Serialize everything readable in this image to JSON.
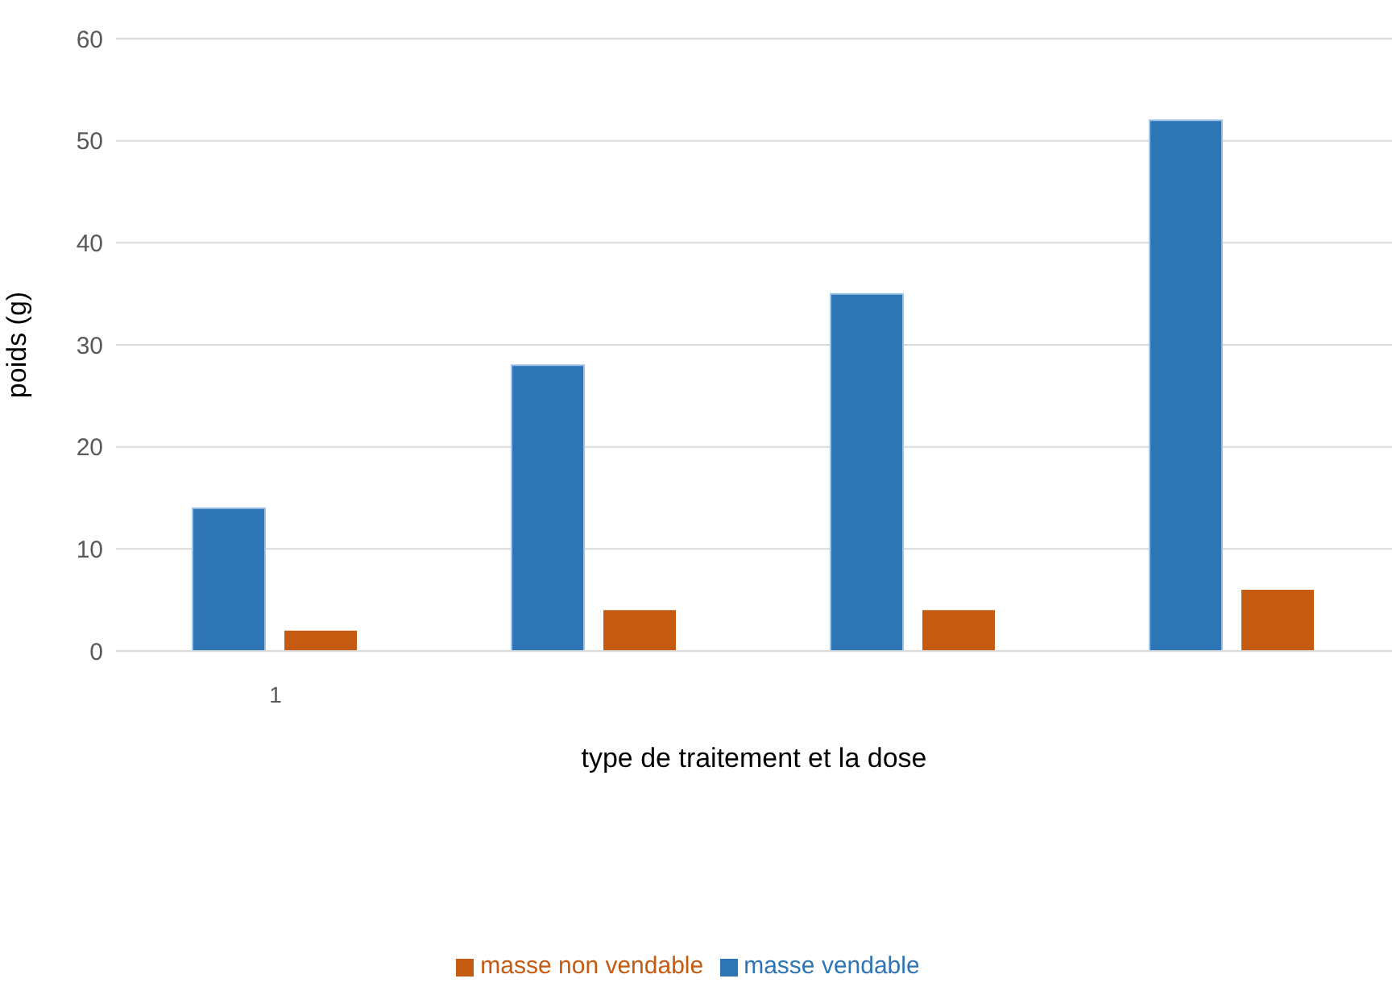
{
  "chart_data": {
    "type": "bar",
    "xlabel": "type de traitement et la dose",
    "ylabel": "poids (g)",
    "categories": [
      "1",
      null,
      null,
      null
    ],
    "series": [
      {
        "name": "masse vendable",
        "color": "#2e75b6",
        "values": [
          14,
          28,
          35,
          52
        ]
      },
      {
        "name": "masse non vendable",
        "color": "#c55a11",
        "values": [
          2,
          4,
          4,
          6
        ]
      }
    ],
    "ylim": [
      0,
      60
    ],
    "yticks": [
      0,
      10,
      20,
      30,
      40,
      50,
      60
    ],
    "grid": "y",
    "legend": "bottom"
  }
}
